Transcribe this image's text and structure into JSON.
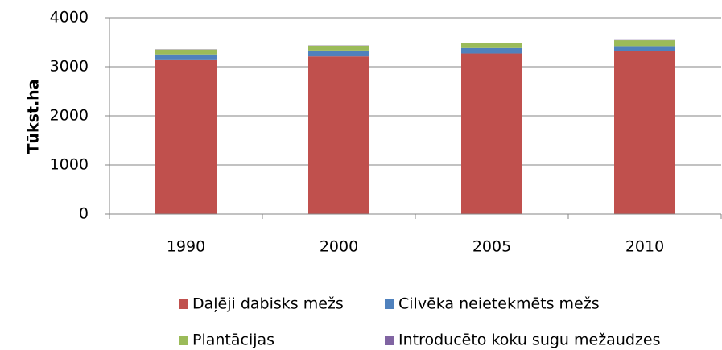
{
  "chart_data": {
    "type": "stacked_bar",
    "y_label": "Tūkst.ha",
    "categories": [
      "1990",
      "2000",
      "2005",
      "2010"
    ],
    "series": [
      {
        "name": "Daļēji dabisks mežs",
        "color": "#c0504d",
        "values": [
          3150,
          3210,
          3270,
          3320
        ]
      },
      {
        "name": "Cilvēka neietekmēts mežs",
        "color": "#4f81bd",
        "values": [
          100,
          120,
          110,
          100
        ]
      },
      {
        "name": "Plantācijas",
        "color": "#9bbb59",
        "values": [
          100,
          100,
          100,
          120
        ]
      },
      {
        "name": "Introducēto koku sugu mežaudzes",
        "color": "#8064a2",
        "values": [
          5,
          5,
          5,
          5
        ]
      }
    ],
    "ylim": [
      0,
      4000
    ],
    "yticks": [
      0,
      1000,
      2000,
      3000,
      4000
    ],
    "grid": true
  }
}
